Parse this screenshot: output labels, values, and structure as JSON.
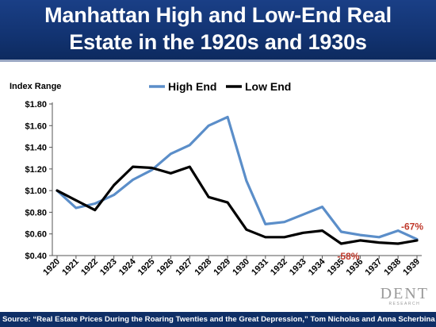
{
  "title": {
    "line1": "Manhattan High and Low-End Real",
    "line2": "Estate in the 1920s and 1930s"
  },
  "source": "Source: “Real Estate Prices During the Roaring Twenties and the Great Depression,” Tom Nicholas and Anna Scherbina",
  "logo": {
    "word": "DENT",
    "sub": "RESEARCH"
  },
  "colors": {
    "title_band": "#123371",
    "high_end": "#5b8ec9",
    "low_end": "#000000",
    "annotation": "#c0392b",
    "source_band": "#0f2f66"
  },
  "chart_data": {
    "type": "line",
    "ylabel": "Index Range",
    "ylim": [
      0.4,
      1.8
    ],
    "yticks": [
      "$0.40",
      "$0.60",
      "$0.80",
      "$1.00",
      "$1.20",
      "$1.40",
      "$1.60",
      "$1.80"
    ],
    "ytick_values": [
      0.4,
      0.6,
      0.8,
      1.0,
      1.2,
      1.4,
      1.6,
      1.8
    ],
    "x": [
      "1920",
      "1921",
      "1922",
      "1923",
      "1924",
      "1925",
      "1926",
      "1927",
      "1928",
      "1929",
      "1930",
      "1931",
      "1932",
      "1933",
      "1934",
      "1935",
      "1936",
      "1937",
      "1938",
      "1939"
    ],
    "grid": false,
    "legend": "top",
    "series": [
      {
        "name": "High End",
        "color": "#5b8ec9",
        "values": [
          1.0,
          0.84,
          0.88,
          0.96,
          1.1,
          1.19,
          1.34,
          1.42,
          1.6,
          1.68,
          1.09,
          0.69,
          0.71,
          0.78,
          0.85,
          0.62,
          0.59,
          0.57,
          0.63,
          0.55
        ]
      },
      {
        "name": "Low End",
        "color": "#000000",
        "values": [
          1.0,
          0.91,
          0.82,
          1.05,
          1.22,
          1.21,
          1.16,
          1.22,
          0.94,
          0.89,
          0.64,
          0.57,
          0.57,
          0.61,
          0.63,
          0.51,
          0.54,
          0.52,
          0.51,
          0.54
        ]
      }
    ],
    "annotations": [
      {
        "text": "-67%",
        "x": "1939",
        "series": "High End",
        "color": "#c0392b"
      },
      {
        "text": "-58%",
        "x": "1935",
        "series": "Low End",
        "color": "#c0392b"
      }
    ]
  }
}
